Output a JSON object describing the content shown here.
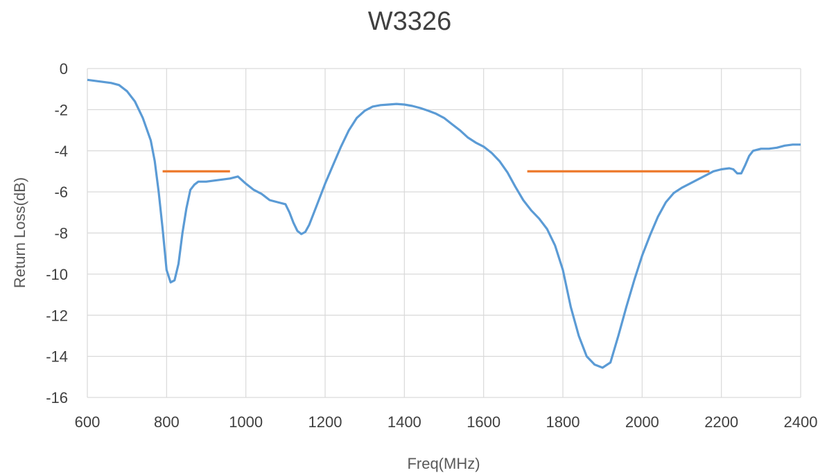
{
  "chart_data": {
    "type": "line",
    "title": "W3326",
    "xlabel": "Freq(MHz)",
    "ylabel": "Return Loss(dB)",
    "xlim": [
      600,
      2400
    ],
    "ylim": [
      -16,
      0
    ],
    "x_ticks": [
      600,
      800,
      1000,
      1200,
      1400,
      1600,
      1800,
      2000,
      2200,
      2400
    ],
    "y_ticks": [
      0,
      -2,
      -4,
      -6,
      -8,
      -10,
      -12,
      -14,
      -16
    ],
    "x_tick_labels": [
      "600",
      "800",
      "1000",
      "1200",
      "1400",
      "1600",
      "1800",
      "2000",
      "2200",
      "2400"
    ],
    "y_tick_labels": [
      "0",
      "-2",
      "-4",
      "-6",
      "-8",
      "-10",
      "-12",
      "-14",
      "-16"
    ],
    "grid": true,
    "legend": "none",
    "series": [
      {
        "color": "#5b9bd5",
        "x": [
          600,
          620,
          640,
          660,
          680,
          700,
          720,
          740,
          760,
          770,
          780,
          790,
          800,
          810,
          820,
          830,
          840,
          850,
          860,
          870,
          880,
          900,
          920,
          940,
          960,
          980,
          1000,
          1020,
          1040,
          1060,
          1080,
          1100,
          1110,
          1120,
          1130,
          1140,
          1150,
          1160,
          1180,
          1200,
          1220,
          1240,
          1260,
          1280,
          1300,
          1320,
          1340,
          1360,
          1380,
          1400,
          1420,
          1440,
          1460,
          1480,
          1500,
          1520,
          1540,
          1560,
          1580,
          1600,
          1620,
          1640,
          1660,
          1680,
          1700,
          1720,
          1740,
          1760,
          1780,
          1800,
          1820,
          1840,
          1860,
          1880,
          1900,
          1920,
          1940,
          1960,
          1980,
          2000,
          2020,
          2040,
          2060,
          2080,
          2100,
          2120,
          2140,
          2160,
          2180,
          2200,
          2220,
          2230,
          2240,
          2250,
          2260,
          2270,
          2280,
          2300,
          2320,
          2340,
          2360,
          2380,
          2400
        ],
        "y": [
          -0.55,
          -0.6,
          -0.65,
          -0.7,
          -0.8,
          -1.1,
          -1.6,
          -2.4,
          -3.5,
          -4.5,
          -6.0,
          -7.8,
          -9.8,
          -10.4,
          -10.3,
          -9.5,
          -8.0,
          -6.8,
          -5.9,
          -5.65,
          -5.5,
          -5.5,
          -5.45,
          -5.4,
          -5.35,
          -5.25,
          -5.6,
          -5.9,
          -6.1,
          -6.4,
          -6.5,
          -6.6,
          -7.0,
          -7.5,
          -7.9,
          -8.05,
          -7.95,
          -7.6,
          -6.6,
          -5.6,
          -4.7,
          -3.8,
          -3.0,
          -2.4,
          -2.05,
          -1.85,
          -1.78,
          -1.75,
          -1.72,
          -1.75,
          -1.82,
          -1.92,
          -2.05,
          -2.2,
          -2.4,
          -2.7,
          -3.0,
          -3.35,
          -3.6,
          -3.8,
          -4.1,
          -4.5,
          -5.05,
          -5.75,
          -6.4,
          -6.9,
          -7.3,
          -7.8,
          -8.6,
          -9.8,
          -11.6,
          -13.0,
          -14.0,
          -14.4,
          -14.55,
          -14.3,
          -13.0,
          -11.6,
          -10.3,
          -9.1,
          -8.1,
          -7.2,
          -6.5,
          -6.05,
          -5.8,
          -5.6,
          -5.4,
          -5.2,
          -5.0,
          -4.9,
          -4.85,
          -4.9,
          -5.1,
          -5.1,
          -4.7,
          -4.25,
          -4.0,
          -3.9,
          -3.9,
          -3.85,
          -3.75,
          -3.7,
          -3.7
        ]
      },
      {
        "color": "#ed7d31",
        "x": [
          790,
          960
        ],
        "y": [
          -5,
          -5
        ]
      },
      {
        "color": "#ed7d31",
        "x": [
          1710,
          2170
        ],
        "y": [
          -5,
          -5
        ]
      }
    ]
  }
}
